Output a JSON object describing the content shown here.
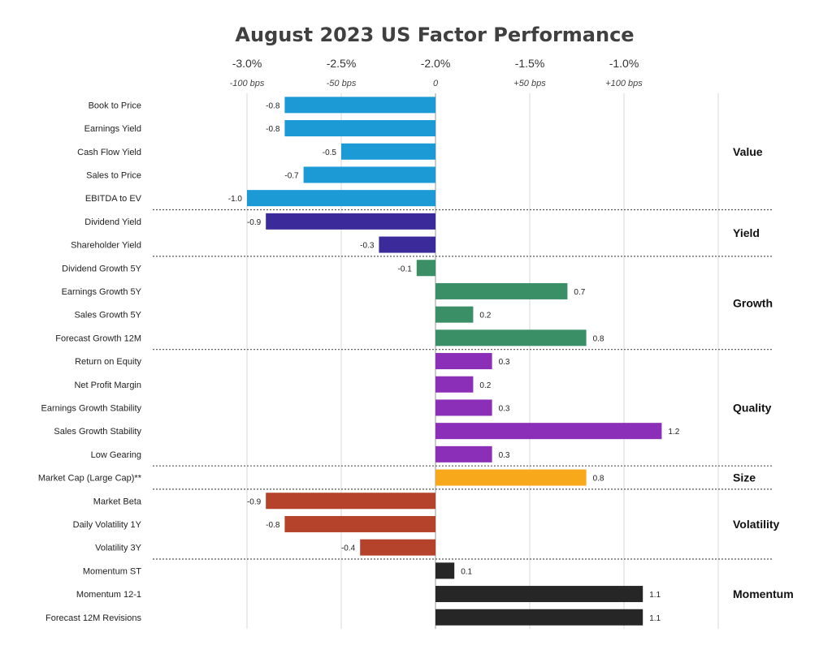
{
  "chart_data": {
    "type": "bar",
    "orientation": "horizontal",
    "title": "August 2023 US Factor Performance",
    "xlim": [
      -1.0,
      1.5
    ],
    "axis_ticks": [
      {
        "value": -1.0,
        "label": "-3.0%",
        "sublabel": "-100 bps"
      },
      {
        "value": -0.5,
        "label": "-2.5%",
        "sublabel": "-50 bps"
      },
      {
        "value": 0.0,
        "label": "-2.0%",
        "sublabel": "0"
      },
      {
        "value": 0.5,
        "label": "-1.5%",
        "sublabel": "+50 bps"
      },
      {
        "value": 1.0,
        "label": "-1.0%",
        "sublabel": "+100 bps"
      },
      {
        "value": 1.5,
        "label": "",
        "sublabel": ""
      }
    ],
    "groups": [
      {
        "name": "Value",
        "color": "#1c9ad6",
        "factors": [
          {
            "label": "Book to Price",
            "value": -0.8,
            "value_label": "-0.8"
          },
          {
            "label": "Earnings Yield",
            "value": -0.8,
            "value_label": "-0.8"
          },
          {
            "label": "Cash Flow Yield",
            "value": -0.5,
            "value_label": "-0.5"
          },
          {
            "label": "Sales to Price",
            "value": -0.7,
            "value_label": "-0.7"
          },
          {
            "label": "EBITDA to EV",
            "value": -1.0,
            "value_label": "-1.0"
          }
        ]
      },
      {
        "name": "Yield",
        "color": "#3a2a9a",
        "factors": [
          {
            "label": "Dividend Yield",
            "value": -0.9,
            "value_label": "-0.9"
          },
          {
            "label": "Shareholder Yield",
            "value": -0.3,
            "value_label": "-0.3"
          }
        ]
      },
      {
        "name": "Growth",
        "color": "#3a8f66",
        "factors": [
          {
            "label": "Dividend Growth 5Y",
            "value": -0.1,
            "value_label": "-0.1"
          },
          {
            "label": "Earnings Growth 5Y",
            "value": 0.7,
            "value_label": "0.7"
          },
          {
            "label": "Sales Growth 5Y",
            "value": 0.2,
            "value_label": "0.2"
          },
          {
            "label": "Forecast Growth 12M",
            "value": 0.8,
            "value_label": "0.8"
          }
        ]
      },
      {
        "name": "Quality",
        "color": "#8b2fb8",
        "factors": [
          {
            "label": "Return on Equity",
            "value": 0.3,
            "value_label": "0.3"
          },
          {
            "label": "Net Profit Margin",
            "value": 0.2,
            "value_label": "0.2"
          },
          {
            "label": "Earnings Growth Stability",
            "value": 0.3,
            "value_label": "0.3"
          },
          {
            "label": "Sales Growth Stability",
            "value": 1.2,
            "value_label": "1.2"
          },
          {
            "label": "Low Gearing",
            "value": 0.3,
            "value_label": "0.3"
          }
        ]
      },
      {
        "name": "Size",
        "color": "#f7a81b",
        "factors": [
          {
            "label": "Market Cap (Large Cap)**",
            "value": 0.8,
            "value_label": "0.8"
          }
        ]
      },
      {
        "name": "Volatility",
        "color": "#b5432c",
        "factors": [
          {
            "label": "Market Beta",
            "value": -0.9,
            "value_label": "-0.9"
          },
          {
            "label": "Daily Volatility 1Y",
            "value": -0.8,
            "value_label": "-0.8"
          },
          {
            "label": "Volatility 3Y",
            "value": -0.4,
            "value_label": "-0.4"
          }
        ]
      },
      {
        "name": "Momentum",
        "color": "#262626",
        "factors": [
          {
            "label": "Momentum ST",
            "value": 0.1,
            "value_label": "0.1"
          },
          {
            "label": "Momentum 12-1",
            "value": 1.1,
            "value_label": "1.1"
          },
          {
            "label": "Forecast 12M Revisions",
            "value": 1.1,
            "value_label": "1.1"
          }
        ]
      }
    ]
  }
}
